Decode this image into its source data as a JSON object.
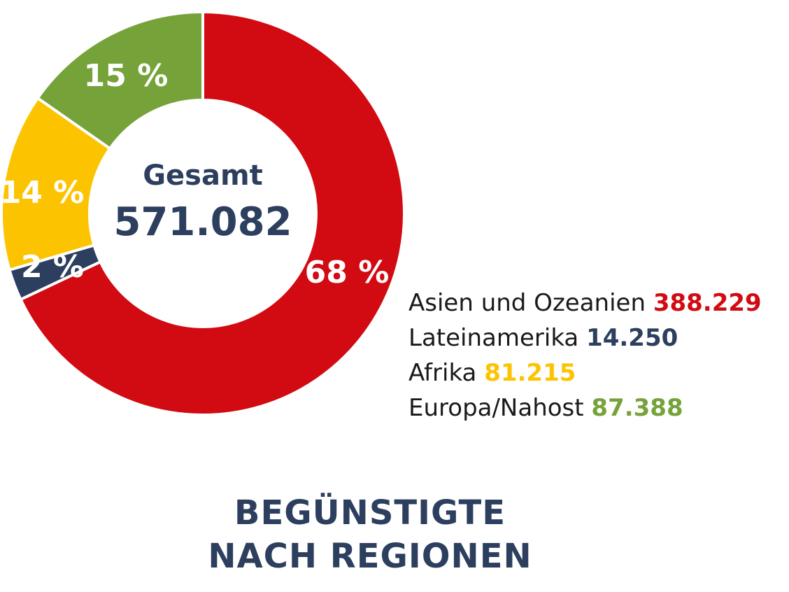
{
  "colors": {
    "asia": "#d20a11",
    "latam": "#2d3f5e",
    "africa": "#fcc400",
    "europe": "#76a23a",
    "dark": "#2d3f5e"
  },
  "center": {
    "label": "Gesamt",
    "value": "571.082"
  },
  "legend": [
    {
      "name": "Asien und Ozeanien",
      "value": "388.229",
      "color": "#d20a11"
    },
    {
      "name": "Lateinamerika",
      "value": "14.250",
      "color": "#2d3f5e"
    },
    {
      "name": "Afrika",
      "value": "81.215",
      "color": "#fcc400"
    },
    {
      "name": "Europa/Nahost",
      "value": "87.388",
      "color": "#76a23a"
    }
  ],
  "title": {
    "line1": "BEGÜNSTIGTE",
    "line2": "NACH REGIONEN"
  },
  "chart_data": {
    "type": "pie",
    "title": "BEGÜNSTIGTE NACH REGIONEN",
    "categories": [
      "Asien und Ozeanien",
      "Lateinamerika",
      "Afrika",
      "Europa/Nahost"
    ],
    "values": [
      388229,
      14250,
      81215,
      87388
    ],
    "labels": [
      "68 %",
      "2 %",
      "14 %",
      "15 %"
    ],
    "colors": [
      "#d20a11",
      "#2d3f5e",
      "#fcc400",
      "#76a23a"
    ],
    "total": 571082,
    "legend": "right"
  }
}
